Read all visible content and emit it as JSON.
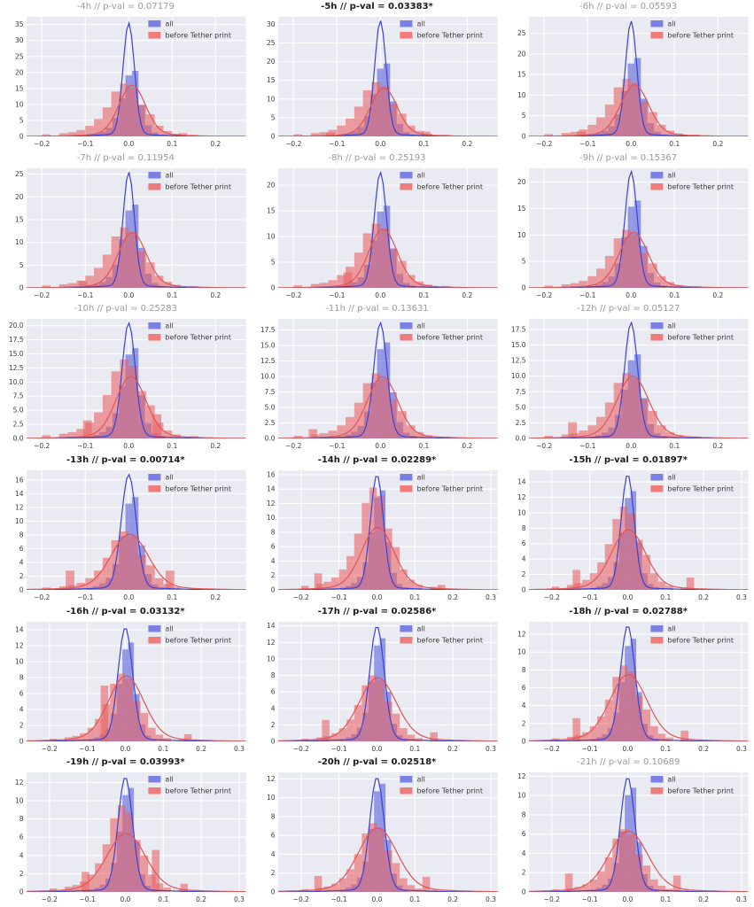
{
  "figure": {
    "legend": {
      "all_label": "all",
      "before_label": "before Tether print"
    },
    "colors": {
      "figure_bg": "#ffffff",
      "axes_bg": "#eaeaf2",
      "grid": "#ffffff",
      "all_fill": "#5a64da",
      "before_fill": "#e96060",
      "all_line": "#3b43cf",
      "before_line": "#e25555",
      "legend_all_patch": "#7b81e2",
      "legend_before_patch": "#ee7c7c",
      "title_significant": "#1a1a1a",
      "title_normal": "#999999",
      "tick_label": "#3b3b3b"
    }
  },
  "chart_data": {
    "type": "histogram+kde grid",
    "grid_rows": 6,
    "grid_cols": 3,
    "series_names": [
      "all",
      "before Tether print"
    ],
    "blue_bins": {
      "start": -0.0975,
      "width": 0.015,
      "shape": [
        0.02,
        0.04,
        0.07,
        0.13,
        0.28,
        0.58,
        0.93,
        1.0,
        0.48,
        0.17,
        0.06,
        0.025
      ]
    },
    "red_bins": {
      "start": -0.2,
      "width": 0.02,
      "shape": [
        0.04,
        0.0,
        0.06,
        0.08,
        0.12,
        0.2,
        0.33,
        0.55,
        0.85,
        1.0,
        0.92,
        0.6,
        0.42,
        0.2,
        0.1,
        0.05,
        0.0,
        0.03
      ]
    },
    "subplots": [
      {
        "title": "-4h // p-val = 0.07179",
        "hour": "-4h",
        "p_val": "0.07179",
        "significant": false,
        "xticks": [
          -0.2,
          -0.1,
          0.0,
          0.1,
          0.2
        ],
        "xlim": [
          -0.235,
          0.27
        ],
        "ytick_step": 5,
        "ytick_max": 35,
        "ylim_top": 37.4,
        "all": {
          "bar_peak": 20.5,
          "kde_peak": 35.5,
          "kde_sigma": 0.013,
          "kde_mu": 0
        },
        "before": {
          "bar_peak": 16.5,
          "kde_peak": 16.0,
          "kde_sigma": 0.03,
          "kde_mu": 0.008,
          "extra_bars": [
            [
              0.125,
              1.0
            ]
          ]
        }
      },
      {
        "title": "-5h // p-val = 0.03383*",
        "hour": "-5h",
        "p_val": "0.03383*",
        "significant": true,
        "xticks": [
          -0.2,
          -0.1,
          0.0,
          0.1,
          0.2
        ],
        "xlim": [
          -0.235,
          0.27
        ],
        "ytick_step": 5,
        "ytick_max": 30,
        "ylim_top": 32.0,
        "all": {
          "bar_peak": 19.5,
          "kde_peak": 31.0,
          "kde_sigma": 0.013,
          "kde_mu": 0
        },
        "before": {
          "bar_peak": 14.5,
          "kde_peak": 13.0,
          "kde_sigma": 0.03,
          "kde_mu": 0.008,
          "extra_bars": [
            [
              0.105,
              1.3
            ],
            [
              -0.115,
              1.0
            ]
          ]
        }
      },
      {
        "title": "-6h // p-val = 0.05593",
        "hour": "-6h",
        "p_val": "0.05593",
        "significant": false,
        "xticks": [
          -0.2,
          -0.1,
          0.0,
          0.1,
          0.2
        ],
        "xlim": [
          -0.235,
          0.27
        ],
        "ytick_step": 5,
        "ytick_max": 25,
        "ylim_top": 29.0,
        "all": {
          "bar_peak": 19.0,
          "kde_peak": 28.0,
          "kde_sigma": 0.013,
          "kde_mu": 0
        },
        "before": {
          "bar_peak": 14.0,
          "kde_peak": 12.5,
          "kde_sigma": 0.032,
          "kde_mu": 0.008,
          "extra_bars": [
            [
              -0.115,
              1.2
            ]
          ]
        }
      },
      {
        "title": "-7h // p-val = 0.11954",
        "hour": "-7h",
        "p_val": "0.11954",
        "significant": false,
        "xticks": [
          -0.2,
          -0.1,
          0.0,
          0.1,
          0.2
        ],
        "xlim": [
          -0.235,
          0.27
        ],
        "ytick_step": 5,
        "ytick_max": 25,
        "ylim_top": 26.3,
        "all": {
          "bar_peak": 18.3,
          "kde_peak": 25.5,
          "kde_sigma": 0.013,
          "kde_mu": 0
        },
        "before": {
          "bar_peak": 13.3,
          "kde_peak": 12.2,
          "kde_sigma": 0.032,
          "kde_mu": 0.008,
          "extra_bars": [
            [
              -0.105,
              1.5
            ]
          ]
        }
      },
      {
        "title": "-8h // p-val = 0.25193",
        "hour": "-8h",
        "p_val": "0.25193",
        "significant": false,
        "xticks": [
          -0.2,
          -0.1,
          0.0,
          0.1,
          0.2
        ],
        "xlim": [
          -0.235,
          0.27
        ],
        "ytick_step": 5,
        "ytick_max": 20,
        "ylim_top": 23.3,
        "all": {
          "bar_peak": 16.0,
          "kde_peak": 22.5,
          "kde_sigma": 0.014,
          "kde_mu": 0
        },
        "before": {
          "bar_peak": 12.5,
          "kde_peak": 11.5,
          "kde_sigma": 0.032,
          "kde_mu": 0.006,
          "extra_bars": [
            [
              -0.075,
              3.0
            ]
          ]
        }
      },
      {
        "title": "-9h // p-val = 0.15367",
        "hour": "-9h",
        "p_val": "0.15367",
        "significant": false,
        "xticks": [
          -0.2,
          -0.1,
          0.0,
          0.1,
          0.2
        ],
        "xlim": [
          -0.235,
          0.27
        ],
        "ytick_step": 5,
        "ytick_max": 20,
        "ylim_top": 22.6,
        "all": {
          "bar_peak": 16.5,
          "kde_peak": 22.0,
          "kde_sigma": 0.014,
          "kde_mu": 0
        },
        "before": {
          "bar_peak": 11.0,
          "kde_peak": 10.5,
          "kde_sigma": 0.033,
          "kde_mu": 0.006,
          "extra_bars": []
        }
      },
      {
        "title": "-10h // p-val = 0.25283",
        "hour": "-10h",
        "p_val": "0.25283",
        "significant": false,
        "xticks": [
          -0.2,
          -0.1,
          0.0,
          0.1,
          0.2
        ],
        "xlim": [
          -0.235,
          0.27
        ],
        "ytick_step": 2.5,
        "ytick_max": 20,
        "ylim_top": 21.2,
        "all": {
          "bar_peak": 16.0,
          "kde_peak": 20.5,
          "kde_sigma": 0.015,
          "kde_mu": 0
        },
        "before": {
          "bar_peak": 14.0,
          "kde_peak": 11.0,
          "kde_sigma": 0.034,
          "kde_mu": 0.005,
          "extra_bars": [
            [
              -0.095,
              3.2
            ],
            [
              0.065,
              4.3
            ]
          ]
        }
      },
      {
        "title": "-11h // p-val = 0.13631",
        "hour": "-11h",
        "p_val": "0.13631",
        "significant": false,
        "xticks": [
          -0.2,
          -0.1,
          0.0,
          0.1,
          0.2
        ],
        "xlim": [
          -0.235,
          0.27
        ],
        "ytick_step": 2.5,
        "ytick_max": 17.5,
        "ylim_top": 19.3,
        "all": {
          "bar_peak": 15.5,
          "kde_peak": 18.7,
          "kde_sigma": 0.015,
          "kde_mu": 0
        },
        "before": {
          "bar_peak": 10.5,
          "kde_peak": 10.0,
          "kde_sigma": 0.034,
          "kde_mu": 0.005,
          "extra_bars": [
            [
              -0.155,
              1.5
            ]
          ]
        }
      },
      {
        "title": "-12h // p-val = 0.05127",
        "hour": "-12h",
        "p_val": "0.05127",
        "significant": false,
        "xticks": [
          -0.2,
          -0.1,
          0.0,
          0.1,
          0.2
        ],
        "xlim": [
          -0.235,
          0.27
        ],
        "ytick_step": 2.5,
        "ytick_max": 17.5,
        "ylim_top": 19.2,
        "all": {
          "bar_peak": 13.5,
          "kde_peak": 18.6,
          "kde_sigma": 0.015,
          "kde_mu": 0
        },
        "before": {
          "bar_peak": 10.5,
          "kde_peak": 10.0,
          "kde_sigma": 0.036,
          "kde_mu": 0.004,
          "extra_bars": [
            [
              -0.135,
              2.6
            ]
          ]
        }
      },
      {
        "title": "-13h // p-val = 0.00714*",
        "hour": "-13h",
        "p_val": "0.00714*",
        "significant": true,
        "xticks": [
          -0.2,
          -0.1,
          0.0,
          0.1,
          0.2
        ],
        "xlim": [
          -0.235,
          0.27
        ],
        "ytick_step": 2,
        "ytick_max": 16,
        "ylim_top": 17.4,
        "all": {
          "bar_peak": 13.5,
          "kde_peak": 16.8,
          "kde_sigma": 0.017,
          "kde_mu": 0
        },
        "before": {
          "bar_peak": 8.5,
          "kde_peak": 8.1,
          "kde_sigma": 0.042,
          "kde_mu": 0.002,
          "extra_bars": [
            [
              -0.135,
              2.8
            ],
            [
              0.095,
              2.8
            ]
          ]
        }
      },
      {
        "title": "-14h // p-val = 0.02289*",
        "hour": "-14h",
        "p_val": "0.02289*",
        "significant": true,
        "xticks": [
          -0.2,
          -0.1,
          0.0,
          0.1,
          0.2,
          0.3
        ],
        "xlim": [
          -0.26,
          0.318
        ],
        "ytick_step": 2,
        "ytick_max": 16,
        "ylim_top": 16.6,
        "all": {
          "bar_peak": 13.8,
          "kde_peak": 16.0,
          "kde_sigma": 0.017,
          "kde_mu": 0
        },
        "before": {
          "bar_peak": 14.2,
          "kde_peak": 8.7,
          "kde_sigma": 0.042,
          "kde_mu": 0.002,
          "extra_bars": [
            [
              -0.155,
              2.3
            ],
            [
              0.17,
              0.7
            ]
          ]
        }
      },
      {
        "title": "-15h // p-val = 0.01897*",
        "hour": "-15h",
        "p_val": "0.01897*",
        "significant": true,
        "xticks": [
          -0.2,
          -0.1,
          0.0,
          0.1,
          0.2,
          0.3
        ],
        "xlim": [
          -0.26,
          0.318
        ],
        "ytick_step": 2,
        "ytick_max": 14,
        "ylim_top": 15.5,
        "all": {
          "bar_peak": 12.8,
          "kde_peak": 15.0,
          "kde_sigma": 0.017,
          "kde_mu": 0
        },
        "before": {
          "bar_peak": 10.8,
          "kde_peak": 7.8,
          "kde_sigma": 0.044,
          "kde_mu": 0.002,
          "extra_bars": [
            [
              -0.135,
              2.6
            ],
            [
              0.165,
              1.6
            ]
          ]
        }
      },
      {
        "title": "-16h // p-val = 0.03132*",
        "hour": "-16h",
        "p_val": "0.03132*",
        "significant": true,
        "xticks": [
          -0.2,
          -0.1,
          0.0,
          0.1,
          0.2,
          0.3
        ],
        "xlim": [
          -0.26,
          0.318
        ],
        "ytick_step": 2,
        "ytick_max": 14,
        "ylim_top": 15.0,
        "all": {
          "bar_peak": 12.4,
          "kde_peak": 14.3,
          "kde_sigma": 0.019,
          "kde_mu": 0
        },
        "before": {
          "bar_peak": 8.5,
          "kde_peak": 8.2,
          "kde_sigma": 0.046,
          "kde_mu": 0.002,
          "extra_bars": [
            [
              -0.055,
              7.0
            ],
            [
              0.165,
              0.9
            ]
          ]
        }
      },
      {
        "title": "-17h // p-val = 0.02586*",
        "hour": "-17h",
        "p_val": "0.02586*",
        "significant": true,
        "xticks": [
          -0.2,
          -0.1,
          0.0,
          0.1,
          0.2,
          0.3
        ],
        "xlim": [
          -0.26,
          0.318
        ],
        "ytick_step": 2,
        "ytick_max": 14,
        "ylim_top": 14.5,
        "all": {
          "bar_peak": 12.5,
          "kde_peak": 14.0,
          "kde_sigma": 0.019,
          "kde_mu": 0
        },
        "before": {
          "bar_peak": 8.0,
          "kde_peak": 7.7,
          "kde_sigma": 0.048,
          "kde_mu": 0.002,
          "extra_bars": [
            [
              -0.135,
              2.6
            ],
            [
              0.15,
              1.1
            ]
          ]
        }
      },
      {
        "title": "-18h // p-val = 0.02788*",
        "hour": "-18h",
        "p_val": "0.02788*",
        "significant": true,
        "xticks": [
          -0.2,
          -0.1,
          0.0,
          0.1,
          0.2,
          0.3
        ],
        "xlim": [
          -0.26,
          0.318
        ],
        "ytick_step": 2,
        "ytick_max": 12,
        "ylim_top": 13.4,
        "all": {
          "bar_peak": 11.5,
          "kde_peak": 13.0,
          "kde_sigma": 0.019,
          "kde_mu": 0
        },
        "before": {
          "bar_peak": 8.5,
          "kde_peak": 7.5,
          "kde_sigma": 0.048,
          "kde_mu": 0.002,
          "extra_bars": [
            [
              -0.135,
              2.6
            ],
            [
              0.15,
              1.2
            ]
          ]
        }
      },
      {
        "title": "-19h // p-val = 0.03993*",
        "hour": "-19h",
        "p_val": "0.03993*",
        "significant": true,
        "xticks": [
          -0.2,
          -0.1,
          0.0,
          0.1,
          0.2,
          0.3
        ],
        "xlim": [
          -0.26,
          0.318
        ],
        "ytick_step": 2,
        "ytick_max": 12,
        "ylim_top": 13.1,
        "all": {
          "bar_peak": 11.4,
          "kde_peak": 12.6,
          "kde_sigma": 0.019,
          "kde_mu": 0
        },
        "before": {
          "bar_peak": 9.5,
          "kde_peak": 6.4,
          "kde_sigma": 0.05,
          "kde_mu": 0.002,
          "extra_bars": [
            [
              -0.105,
              2.2
            ],
            [
              0.08,
              4.6
            ],
            [
              0.155,
              0.9
            ]
          ]
        }
      },
      {
        "title": "-20h // p-val = 0.02518*",
        "hour": "-20h",
        "p_val": "0.02518*",
        "significant": true,
        "xticks": [
          -0.2,
          -0.1,
          0.0,
          0.1,
          0.2,
          0.3
        ],
        "xlim": [
          -0.26,
          0.318
        ],
        "ytick_step": 2,
        "ytick_max": 12,
        "ylim_top": 12.7,
        "all": {
          "bar_peak": 11.5,
          "kde_peak": 12.2,
          "kde_sigma": 0.019,
          "kde_mu": 0
        },
        "before": {
          "bar_peak": 7.3,
          "kde_peak": 6.8,
          "kde_sigma": 0.05,
          "kde_mu": 0.002,
          "extra_bars": [
            [
              -0.155,
              1.7
            ],
            [
              0.13,
              1.6
            ]
          ]
        }
      },
      {
        "title": "-21h // p-val = 0.10689",
        "hour": "-21h",
        "p_val": "0.10689",
        "significant": false,
        "xticks": [
          -0.2,
          -0.1,
          0.0,
          0.1,
          0.2,
          0.3
        ],
        "xlim": [
          -0.26,
          0.318
        ],
        "ytick_step": 2,
        "ytick_max": 12,
        "ylim_top": 12.4,
        "all": {
          "bar_peak": 10.8,
          "kde_peak": 11.9,
          "kde_sigma": 0.019,
          "kde_mu": 0
        },
        "before": {
          "bar_peak": 6.5,
          "kde_peak": 6.3,
          "kde_sigma": 0.05,
          "kde_mu": 0.002,
          "extra_bars": [
            [
              -0.155,
              1.9
            ],
            [
              0.13,
              1.7
            ]
          ]
        }
      }
    ]
  }
}
